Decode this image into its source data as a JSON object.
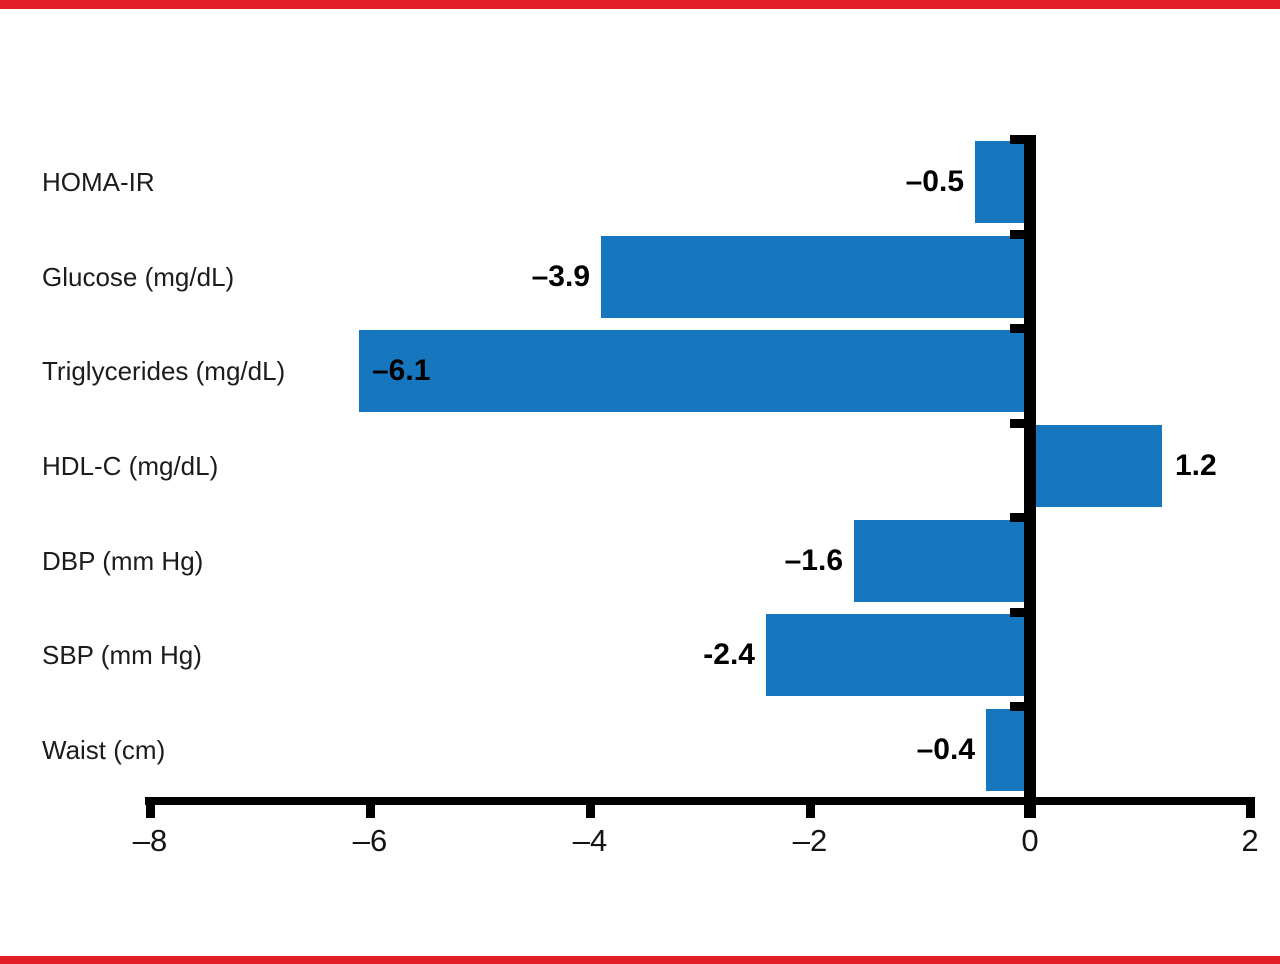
{
  "page": {
    "background_color": "#ffffff",
    "top_border_color": "#e21f26",
    "bottom_border_color": "#e21f26"
  },
  "chart_data": {
    "type": "bar",
    "orientation": "horizontal",
    "title": "",
    "xlabel": "",
    "ylabel": "",
    "grid": false,
    "legend": false,
    "categories": [
      "HOMA-IR",
      "Glucose (mg/dL)",
      "Triglycerides (mg/dL)",
      "HDL-C (mg/dL)",
      "DBP (mm Hg)",
      "SBP (mm Hg)",
      "Waist (cm)"
    ],
    "values": [
      -0.5,
      -3.9,
      -6.1,
      1.2,
      -1.6,
      -2.4,
      -0.4
    ],
    "value_labels": [
      "–0.5",
      "–3.9",
      "–6.1",
      "1.2",
      "–1.6",
      "-2.4",
      "–0.4"
    ],
    "xlim": [
      -8,
      2
    ],
    "x_ticks": [
      -8,
      -6,
      -4,
      -2,
      0,
      2
    ],
    "x_tick_labels": [
      "–8",
      "–6",
      "–4",
      "–2",
      "0",
      "2"
    ],
    "bar_color": "#1777be",
    "axis_color": "#000000",
    "label_color": "#1c1c1e",
    "value_label_color": "#000000"
  }
}
